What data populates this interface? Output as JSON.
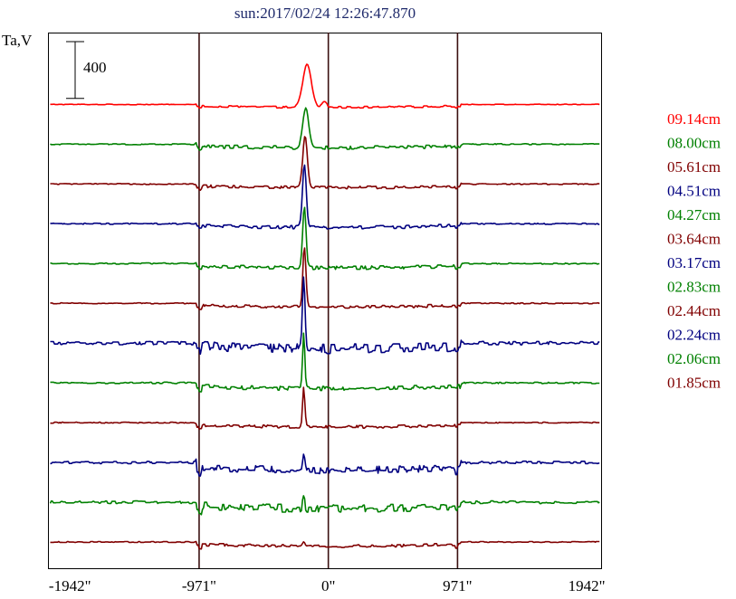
{
  "chart_data": {
    "type": "line",
    "title": "sun:2017/02/24 12:26:47.870",
    "ylabel": "Ta,V",
    "scale_bar_label": "400",
    "scale_bar_value": 400,
    "xlim": [
      -2100,
      2050
    ],
    "x_ticks": [
      {
        "value": -1942,
        "label": "-1942\""
      },
      {
        "value": -971,
        "label": "-971\""
      },
      {
        "value": 0,
        "label": "0\""
      },
      {
        "value": 971,
        "label": "971\""
      },
      {
        "value": 1942,
        "label": "1942\""
      }
    ],
    "vertical_marker_lines": [
      -971,
      0,
      971
    ],
    "series_spacing": 280,
    "series": [
      {
        "name": "09.14cm",
        "color": "#ff0000",
        "baseline": 3080,
        "noise": 6,
        "lowering": 20,
        "peaks": [
          {
            "x": -160,
            "h": 300,
            "w": 45
          },
          {
            "x": -30,
            "h": 40,
            "w": 25
          }
        ]
      },
      {
        "name": "08.00cm",
        "color": "#008000",
        "baseline": 2800,
        "noise": 12,
        "lowering": 25,
        "peaks": [
          {
            "x": -170,
            "h": 270,
            "w": 32
          }
        ]
      },
      {
        "name": "05.61cm",
        "color": "#800000",
        "baseline": 2520,
        "noise": 10,
        "lowering": 25,
        "peaks": [
          {
            "x": -175,
            "h": 370,
            "w": 24
          }
        ]
      },
      {
        "name": "04.51cm",
        "color": "#000080",
        "baseline": 2240,
        "noise": 12,
        "lowering": 25,
        "peaks": [
          {
            "x": -180,
            "h": 430,
            "w": 20
          }
        ]
      },
      {
        "name": "04.27cm",
        "color": "#008000",
        "baseline": 1960,
        "noise": 12,
        "lowering": 30,
        "peaks": [
          {
            "x": -180,
            "h": 430,
            "w": 18
          }
        ]
      },
      {
        "name": "03.64cm",
        "color": "#800000",
        "baseline": 1680,
        "noise": 10,
        "lowering": 25,
        "peaks": [
          {
            "x": -180,
            "h": 420,
            "w": 16
          }
        ]
      },
      {
        "name": "03.17cm",
        "color": "#000080",
        "baseline": 1400,
        "noise": 35,
        "lowering": 40,
        "peaks": [
          {
            "x": -185,
            "h": 520,
            "w": 14
          }
        ]
      },
      {
        "name": "02.83cm",
        "color": "#008000",
        "baseline": 1120,
        "noise": 15,
        "lowering": 40,
        "peaks": [
          {
            "x": -185,
            "h": 400,
            "w": 12
          }
        ]
      },
      {
        "name": "02.44cm",
        "color": "#800000",
        "baseline": 840,
        "noise": 10,
        "lowering": 30,
        "peaks": [
          {
            "x": -185,
            "h": 290,
            "w": 12
          }
        ]
      },
      {
        "name": "02.24cm",
        "color": "#000080",
        "baseline": 560,
        "noise": 25,
        "lowering": 55,
        "peaks": [
          {
            "x": -185,
            "h": 120,
            "w": 14
          }
        ]
      },
      {
        "name": "02.06cm",
        "color": "#008000",
        "baseline": 280,
        "noise": 28,
        "lowering": 45,
        "peaks": [
          {
            "x": -185,
            "h": 70,
            "w": 12
          }
        ]
      },
      {
        "name": "01.85cm",
        "color": "#800000",
        "baseline": 0,
        "noise": 10,
        "lowering": 30,
        "peaks": [
          {
            "x": -185,
            "h": 25,
            "w": 12
          }
        ]
      }
    ]
  }
}
